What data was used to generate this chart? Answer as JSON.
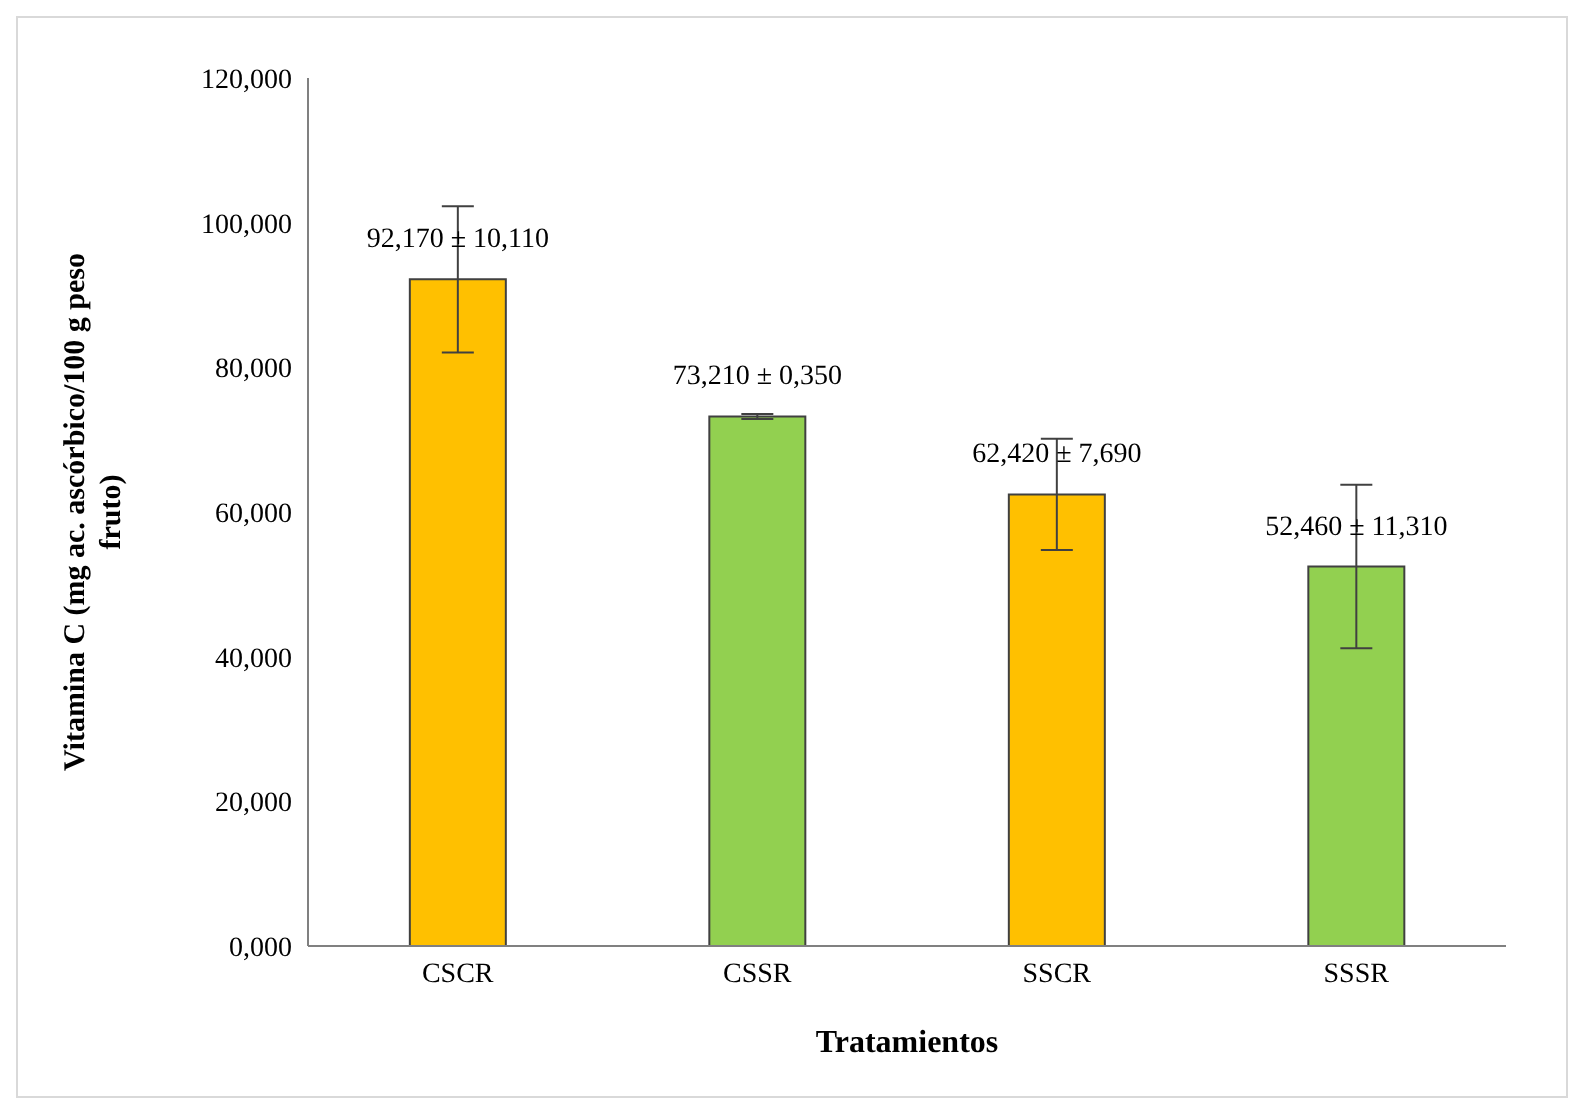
{
  "chart_data": {
    "type": "bar",
    "xlabel": "Tratamientos",
    "ylabel": "Vitamina C (mg ac. ascórbico/100 g peso fruto)",
    "categories": [
      "CSCR",
      "CSSR",
      "SSCR",
      "SSSR"
    ],
    "values": [
      92.17,
      73.21,
      62.42,
      52.46
    ],
    "errors": [
      10.11,
      0.35,
      7.69,
      11.31
    ],
    "value_labels": [
      "92,170 ± 10,110",
      "73,210 ± 0,350",
      "62,420 ± 7,690",
      "52,460 ± 11,310"
    ],
    "colors": [
      "#ffc000",
      "#92d050",
      "#ffc000",
      "#92d050"
    ],
    "ylim": [
      0,
      120
    ],
    "yticks": [
      {
        "value": 0,
        "label": "0,000"
      },
      {
        "value": 20,
        "label": "20,000"
      },
      {
        "value": 40,
        "label": "40,000"
      },
      {
        "value": 60,
        "label": "60,000"
      },
      {
        "value": 80,
        "label": "80,000"
      },
      {
        "value": 100,
        "label": "100,000"
      },
      {
        "value": 120,
        "label": "120,000"
      }
    ]
  }
}
